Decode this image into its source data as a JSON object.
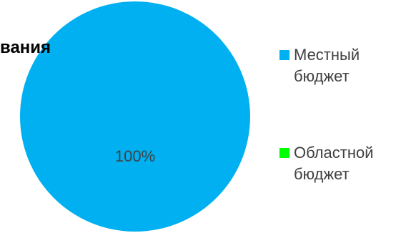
{
  "chart_data": {
    "type": "pie",
    "title": "вания",
    "slices": [
      {
        "label": "Местный бюджет",
        "value": 100,
        "color": "#00B0F0",
        "data_label": "100%"
      },
      {
        "label": "Областной бюджет",
        "value": 0,
        "color": "#00FF00",
        "data_label": ""
      }
    ],
    "legend_position": "right"
  }
}
